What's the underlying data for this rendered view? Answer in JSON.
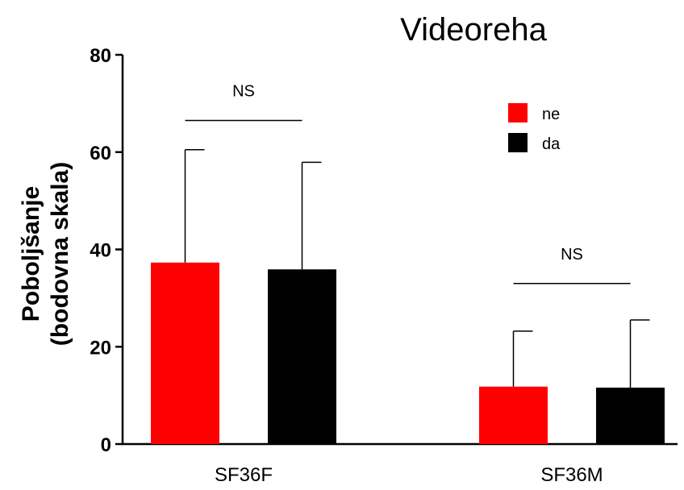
{
  "chart_data": {
    "type": "bar",
    "title": "Videoreha",
    "ylabel_line1": "Poboljšanje",
    "ylabel_line2": "(bodovna skala)",
    "xlabel": "",
    "categories": [
      "SF36F",
      "SF36M"
    ],
    "series": [
      {
        "name": "ne",
        "color": "#ff0000",
        "values": [
          37.3,
          11.8
        ],
        "error": [
          23.2,
          11.4
        ]
      },
      {
        "name": "da",
        "color": "#000000",
        "values": [
          35.9,
          11.6
        ],
        "error": [
          22.0,
          13.9
        ]
      }
    ],
    "ylim": [
      0,
      80
    ],
    "yticks": [
      0,
      20,
      40,
      60,
      80
    ],
    "yticks_labels": [
      "0",
      "20",
      "40",
      "60",
      "80"
    ],
    "significance": [
      {
        "category": "SF36F",
        "label": "NS",
        "y": 66.5
      },
      {
        "category": "SF36M",
        "label": "NS",
        "y": 33
      }
    ],
    "legend_position": "top-right",
    "grid": false
  }
}
